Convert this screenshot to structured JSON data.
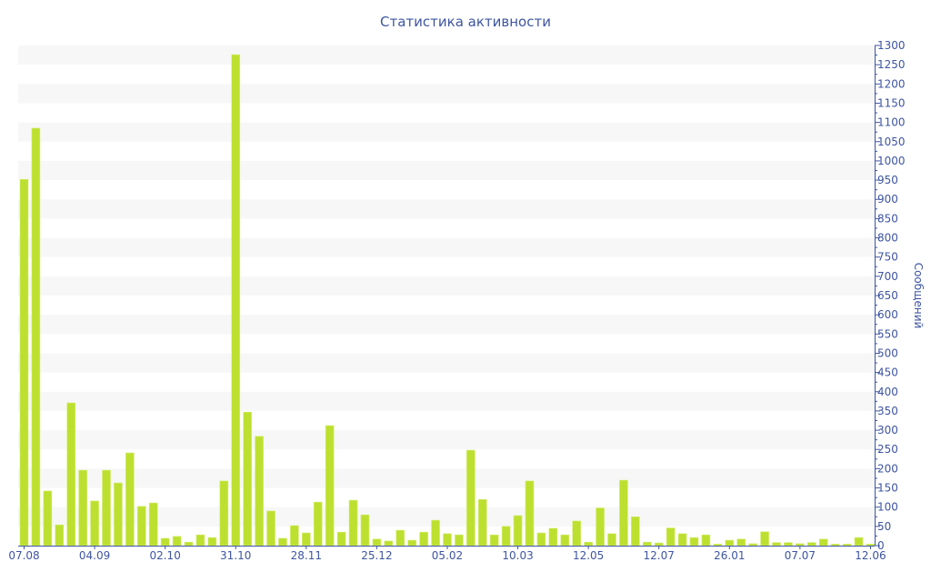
{
  "chart_data": {
    "type": "bar",
    "title": "Статистика активности",
    "ylabel": "Сообщений",
    "xlabel": "",
    "ylim": [
      0,
      1300
    ],
    "y_tick_step": 50,
    "y_axis_side": "right",
    "grid": "alternating horizontal bands",
    "colors": {
      "bar": "#bde030",
      "axis": "#3e55a2",
      "band": "#f7f7f7"
    },
    "x_tick_labels": [
      {
        "bar": 0,
        "label": "07.08"
      },
      {
        "bar": 6,
        "label": "04.09"
      },
      {
        "bar": 12,
        "label": "02.10"
      },
      {
        "bar": 18,
        "label": "31.10"
      },
      {
        "bar": 24,
        "label": "28.11"
      },
      {
        "bar": 30,
        "label": "25.12"
      },
      {
        "bar": 36,
        "label": "05.02"
      },
      {
        "bar": 42,
        "label": "10.03"
      },
      {
        "bar": 48,
        "label": "12.05"
      },
      {
        "bar": 54,
        "label": "12.07"
      },
      {
        "bar": 60,
        "label": "26.01"
      },
      {
        "bar": 66,
        "label": "07.07"
      },
      {
        "bar": 72,
        "label": "12.06"
      }
    ],
    "values": [
      952,
      1085,
      142,
      54,
      371,
      196,
      116,
      196,
      163,
      241,
      102,
      111,
      19,
      24,
      9,
      28,
      21,
      168,
      1276,
      347,
      284,
      90,
      19,
      52,
      33,
      113,
      312,
      35,
      118,
      80,
      17,
      12,
      40,
      14,
      35,
      66,
      31,
      28,
      248,
      120,
      28,
      50,
      78,
      168,
      33,
      45,
      28,
      64,
      9,
      98,
      31,
      170,
      75,
      9,
      7,
      46,
      31,
      21,
      28,
      4,
      14,
      17,
      5,
      36,
      8,
      8,
      5,
      8,
      17,
      4,
      4,
      21,
      4
    ]
  }
}
